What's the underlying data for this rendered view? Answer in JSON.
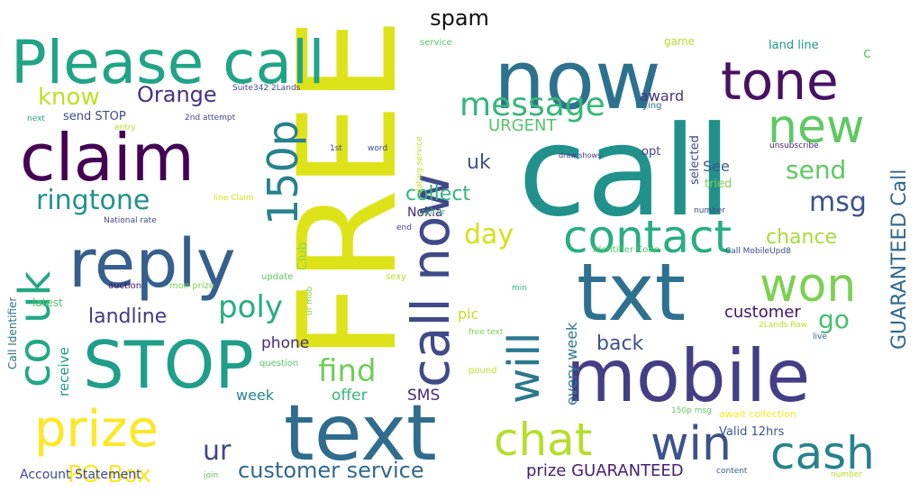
{
  "title": "spam",
  "words": [
    {
      "text": "call",
      "color": "#21918c"
    },
    {
      "text": "FREE",
      "color": "#dde318"
    },
    {
      "text": "now",
      "color": "#2c728e"
    },
    {
      "text": "txt",
      "color": "#2d718e"
    },
    {
      "text": "mobile",
      "color": "#433e85"
    },
    {
      "text": "text",
      "color": "#2f6c8e"
    },
    {
      "text": "claim",
      "color": "#440154"
    },
    {
      "text": "reply",
      "color": "#355f8d"
    },
    {
      "text": "Please call",
      "color": "#20a486"
    },
    {
      "text": "STOP",
      "color": "#1f9e89"
    },
    {
      "text": "prize",
      "color": "#fde725"
    },
    {
      "text": "call now",
      "color": "#3e4a89"
    },
    {
      "text": "tone",
      "color": "#471164"
    },
    {
      "text": "new",
      "color": "#5ec962"
    },
    {
      "text": "won",
      "color": "#7ad151"
    },
    {
      "text": "contact",
      "color": "#28ae80"
    },
    {
      "text": "chat",
      "color": "#b5de2b"
    },
    {
      "text": "cash",
      "color": "#26828e"
    },
    {
      "text": "win",
      "color": "#3b528b"
    },
    {
      "text": "will",
      "color": "#2a788e"
    },
    {
      "text": "co uk",
      "color": "#22a884"
    },
    {
      "text": "150p",
      "color": "#26828e"
    },
    {
      "text": "message",
      "color": "#35b779"
    },
    {
      "text": "ringtone",
      "color": "#21918c"
    },
    {
      "text": "find",
      "color": "#6ece58"
    },
    {
      "text": "customer service",
      "color": "#31688e"
    },
    {
      "text": "Orange",
      "color": "#46327e"
    },
    {
      "text": "know",
      "color": "#bddf26"
    },
    {
      "text": "poly",
      "color": "#27ad81"
    },
    {
      "text": "msg",
      "color": "#3b528b"
    },
    {
      "text": "send",
      "color": "#5ec962"
    },
    {
      "text": "GUARANTEED Call",
      "color": "#31688e"
    },
    {
      "text": "go",
      "color": "#44bf70"
    },
    {
      "text": "ur",
      "color": "#3f4889"
    },
    {
      "text": "PO Box",
      "color": "#fde725"
    },
    {
      "text": "landline",
      "color": "#443983"
    },
    {
      "text": "chance",
      "color": "#a5db36"
    },
    {
      "text": "day",
      "color": "#d2e21b"
    },
    {
      "text": "collect",
      "color": "#2fb47c"
    },
    {
      "text": "back",
      "color": "#3b528b"
    },
    {
      "text": "uk",
      "color": "#3b528b"
    },
    {
      "text": "URGENT",
      "color": "#52c569"
    },
    {
      "text": "customer",
      "color": "#471164"
    },
    {
      "text": "every week",
      "color": "#2a788e"
    },
    {
      "text": "prize GUARANTEED",
      "color": "#481f70"
    },
    {
      "text": "phone",
      "color": "#472d7b"
    },
    {
      "text": "offer",
      "color": "#35b779"
    },
    {
      "text": "SMS",
      "color": "#482878"
    },
    {
      "text": "week",
      "color": "#25848e"
    },
    {
      "text": "Club",
      "color": "#93d741"
    },
    {
      "text": "Nokia",
      "color": "#482878"
    },
    {
      "text": "award",
      "color": "#46327e"
    },
    {
      "text": "See",
      "color": "#38588c"
    },
    {
      "text": "tried",
      "color": "#7ad151"
    },
    {
      "text": "selected",
      "color": "#3e4989"
    },
    {
      "text": "opt",
      "color": "#414487"
    },
    {
      "text": "pic",
      "color": "#c0df25"
    },
    {
      "text": "receive",
      "color": "#1f9a8a"
    },
    {
      "text": "Call Identifier",
      "color": "#2c728e"
    },
    {
      "text": "latest",
      "color": "#56c667"
    },
    {
      "text": "Account Statement",
      "color": "#3f4889"
    },
    {
      "text": "Valid 12hrs",
      "color": "#37598c"
    },
    {
      "text": "send STOP",
      "color": "#3e4989"
    },
    {
      "text": "question",
      "color": "#58c765"
    },
    {
      "text": "auction",
      "color": "#481467"
    },
    {
      "text": "mon prize",
      "color": "#7ad151"
    },
    {
      "text": "update",
      "color": "#5ec962"
    },
    {
      "text": "ur mob",
      "color": "#7fd34e"
    },
    {
      "text": "sexy",
      "color": "#b5de2b"
    },
    {
      "text": "pound",
      "color": "#c2df23"
    },
    {
      "text": "free text",
      "color": "#7ad151"
    },
    {
      "text": "min",
      "color": "#2fb47c"
    },
    {
      "text": "await collection",
      "color": "#fde725"
    },
    {
      "text": "150p msg",
      "color": "#5ec962"
    },
    {
      "text": "content",
      "color": "#355f8d"
    },
    {
      "text": "number",
      "color": "#b8de29"
    },
    {
      "text": "live",
      "color": "#355f8d"
    },
    {
      "text": "2Lands Row",
      "color": "#b5de2b"
    },
    {
      "text": "Identifier Code",
      "color": "#52c569"
    },
    {
      "text": "Call MobileUpd8",
      "color": "#3e4989"
    },
    {
      "text": "unsubscribe",
      "color": "#481a6c"
    },
    {
      "text": "land line",
      "color": "#1f948c"
    },
    {
      "text": "game",
      "color": "#b8de29"
    },
    {
      "text": "c",
      "color": "#5ec962"
    },
    {
      "text": "service",
      "color": "#56c667"
    },
    {
      "text": "Suite342 2Lands",
      "color": "#3e4989"
    },
    {
      "text": "next",
      "color": "#22a884"
    },
    {
      "text": "entry",
      "color": "#bddf26"
    },
    {
      "text": "2nd attempt",
      "color": "#3e4989"
    },
    {
      "text": "1st",
      "color": "#3e4989"
    },
    {
      "text": "word",
      "color": "#3e4989"
    },
    {
      "text": "dating service",
      "color": "#c2df23"
    },
    {
      "text": "draw shows",
      "color": "#46327e"
    },
    {
      "text": "trying",
      "color": "#2c728e"
    },
    {
      "text": "line Claim",
      "color": "#d8e219"
    },
    {
      "text": "National rate",
      "color": "#3e4989"
    },
    {
      "text": "tell ur",
      "color": "#35b779"
    },
    {
      "text": "end",
      "color": "#3f4889"
    },
    {
      "text": "join",
      "color": "#5ec962"
    },
    {
      "text": "number",
      "color": "#3e4989"
    }
  ]
}
